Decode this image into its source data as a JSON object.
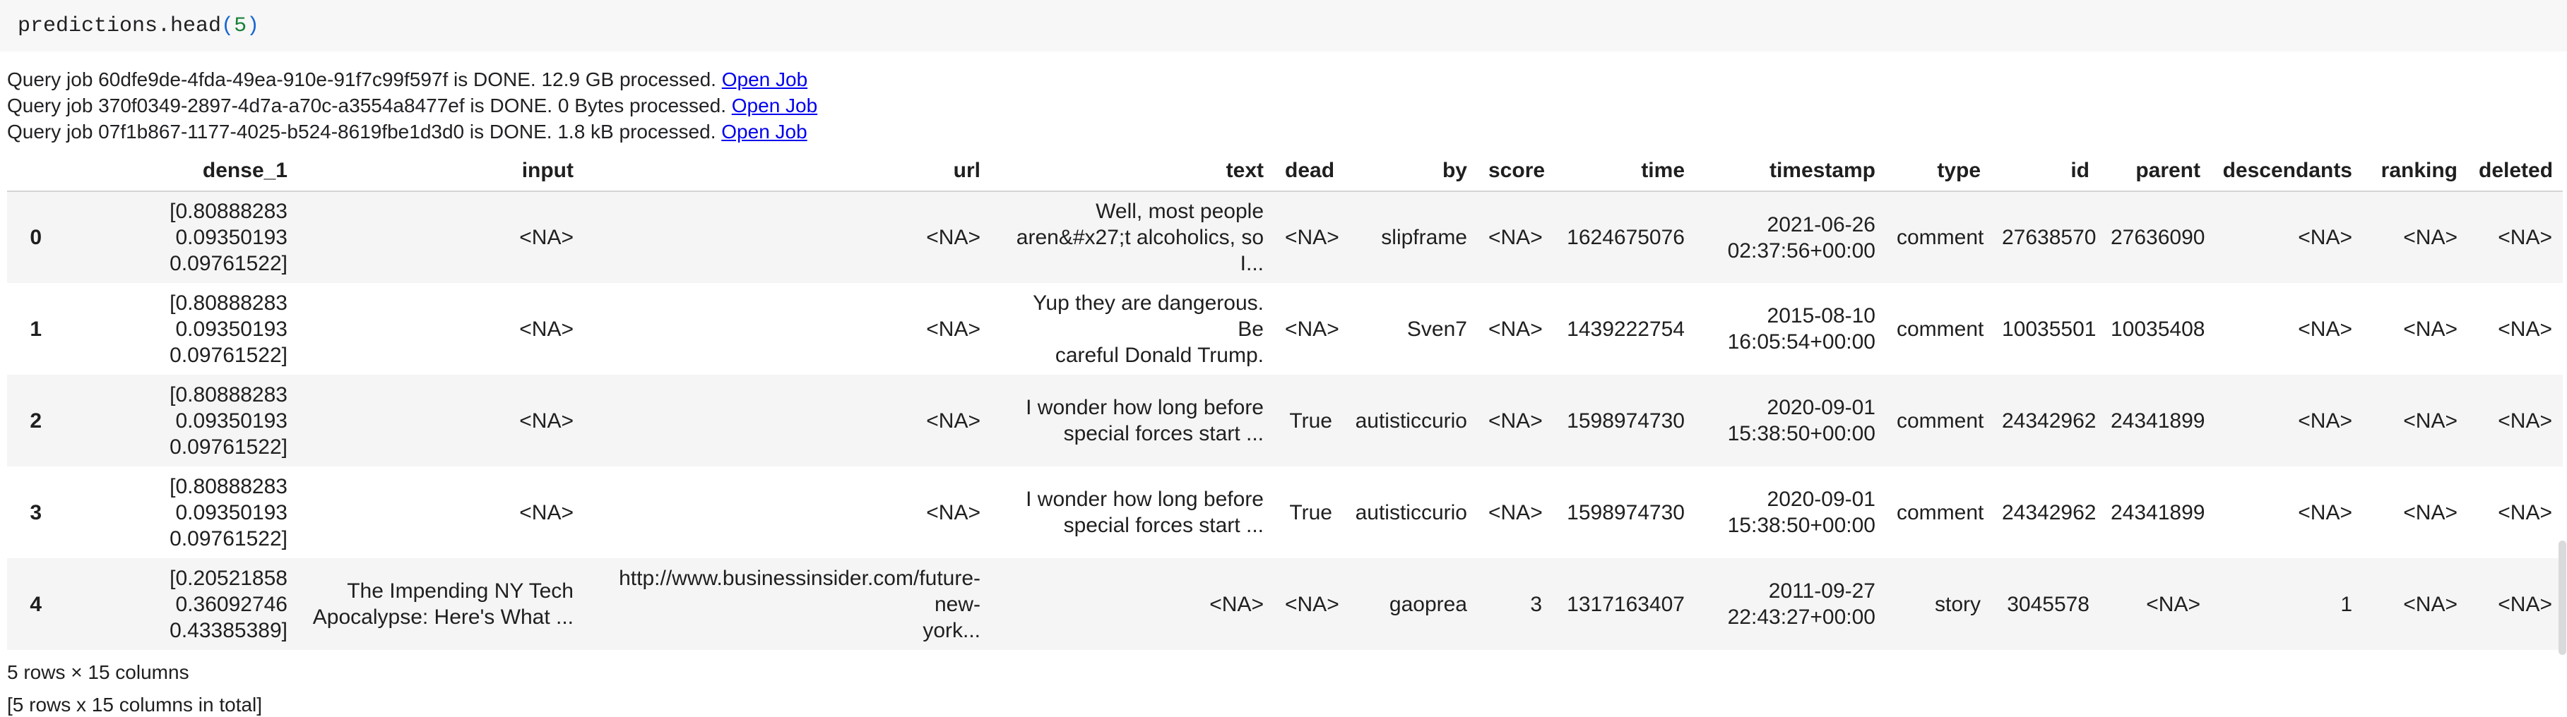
{
  "code_cell": {
    "expression": "predictions.head",
    "paren_open": "(",
    "argument": "5",
    "paren_close": ")"
  },
  "messages": [
    {
      "text": "Query job 60dfe9de-4fda-49ea-910e-91f7c99f597f is DONE. 12.9 GB processed. ",
      "link": "Open Job"
    },
    {
      "text": "Query job 370f0349-2897-4d7a-a70c-a3554a8477ef is DONE. 0 Bytes processed. ",
      "link": "Open Job"
    },
    {
      "text": "Query job 07f1b867-1177-4025-b524-8619fbe1d3d0 is DONE. 1.8 kB processed. ",
      "link": "Open Job"
    }
  ],
  "table": {
    "columns": [
      "",
      "dense_1",
      "input",
      "url",
      "text",
      "dead",
      "by",
      "score",
      "time",
      "timestamp",
      "type",
      "id",
      "parent",
      "descendants",
      "ranking",
      "deleted"
    ],
    "rows": [
      {
        "index": "0",
        "cells": [
          "[0.80888283\n0.09350193\n0.09761522]",
          "<NA>",
          "<NA>",
          "Well, most people\naren&#x27;t alcoholics, so I...",
          "<NA>",
          "slipframe",
          "<NA>",
          "1624675076",
          "2021-06-26\n02:37:56+00:00",
          "comment",
          "27638570",
          "27636090",
          "<NA>",
          "<NA>",
          "<NA>"
        ]
      },
      {
        "index": "1",
        "cells": [
          "[0.80888283\n0.09350193\n0.09761522]",
          "<NA>",
          "<NA>",
          "Yup they are dangerous. Be\ncareful Donald Trump.",
          "<NA>",
          "Sven7",
          "<NA>",
          "1439222754",
          "2015-08-10\n16:05:54+00:00",
          "comment",
          "10035501",
          "10035408",
          "<NA>",
          "<NA>",
          "<NA>"
        ]
      },
      {
        "index": "2",
        "cells": [
          "[0.80888283\n0.09350193\n0.09761522]",
          "<NA>",
          "<NA>",
          "I wonder how long before\nspecial forces start ...",
          "True",
          "autisticcurio",
          "<NA>",
          "1598974730",
          "2020-09-01\n15:38:50+00:00",
          "comment",
          "24342962",
          "24341899",
          "<NA>",
          "<NA>",
          "<NA>"
        ]
      },
      {
        "index": "3",
        "cells": [
          "[0.80888283\n0.09350193\n0.09761522]",
          "<NA>",
          "<NA>",
          "I wonder how long before\nspecial forces start ...",
          "True",
          "autisticcurio",
          "<NA>",
          "1598974730",
          "2020-09-01\n15:38:50+00:00",
          "comment",
          "24342962",
          "24341899",
          "<NA>",
          "<NA>",
          "<NA>"
        ]
      },
      {
        "index": "4",
        "cells": [
          "[0.20521858\n0.36092746\n0.43385389]",
          "The Impending NY Tech\nApocalypse: Here's What ...",
          "http://www.businessinsider.com/future-new-\nyork...",
          "<NA>",
          "<NA>",
          "gaoprea",
          "3",
          "1317163407",
          "2011-09-27\n22:43:27+00:00",
          "story",
          "3045578",
          "<NA>",
          "1",
          "<NA>",
          "<NA>"
        ]
      }
    ]
  },
  "footer": {
    "shape": "5 rows × 15 columns",
    "total": "[5 rows x 15 columns in total]"
  },
  "colors": {
    "link": "#0000ee",
    "code_number": "#188038",
    "code_bracket": "#1967d2",
    "row_stripe": "#f5f5f5",
    "code_cell_bg": "#f7f7f7",
    "header_border": "#d5d5d5",
    "scrollbar_thumb": "#d9dadc"
  }
}
